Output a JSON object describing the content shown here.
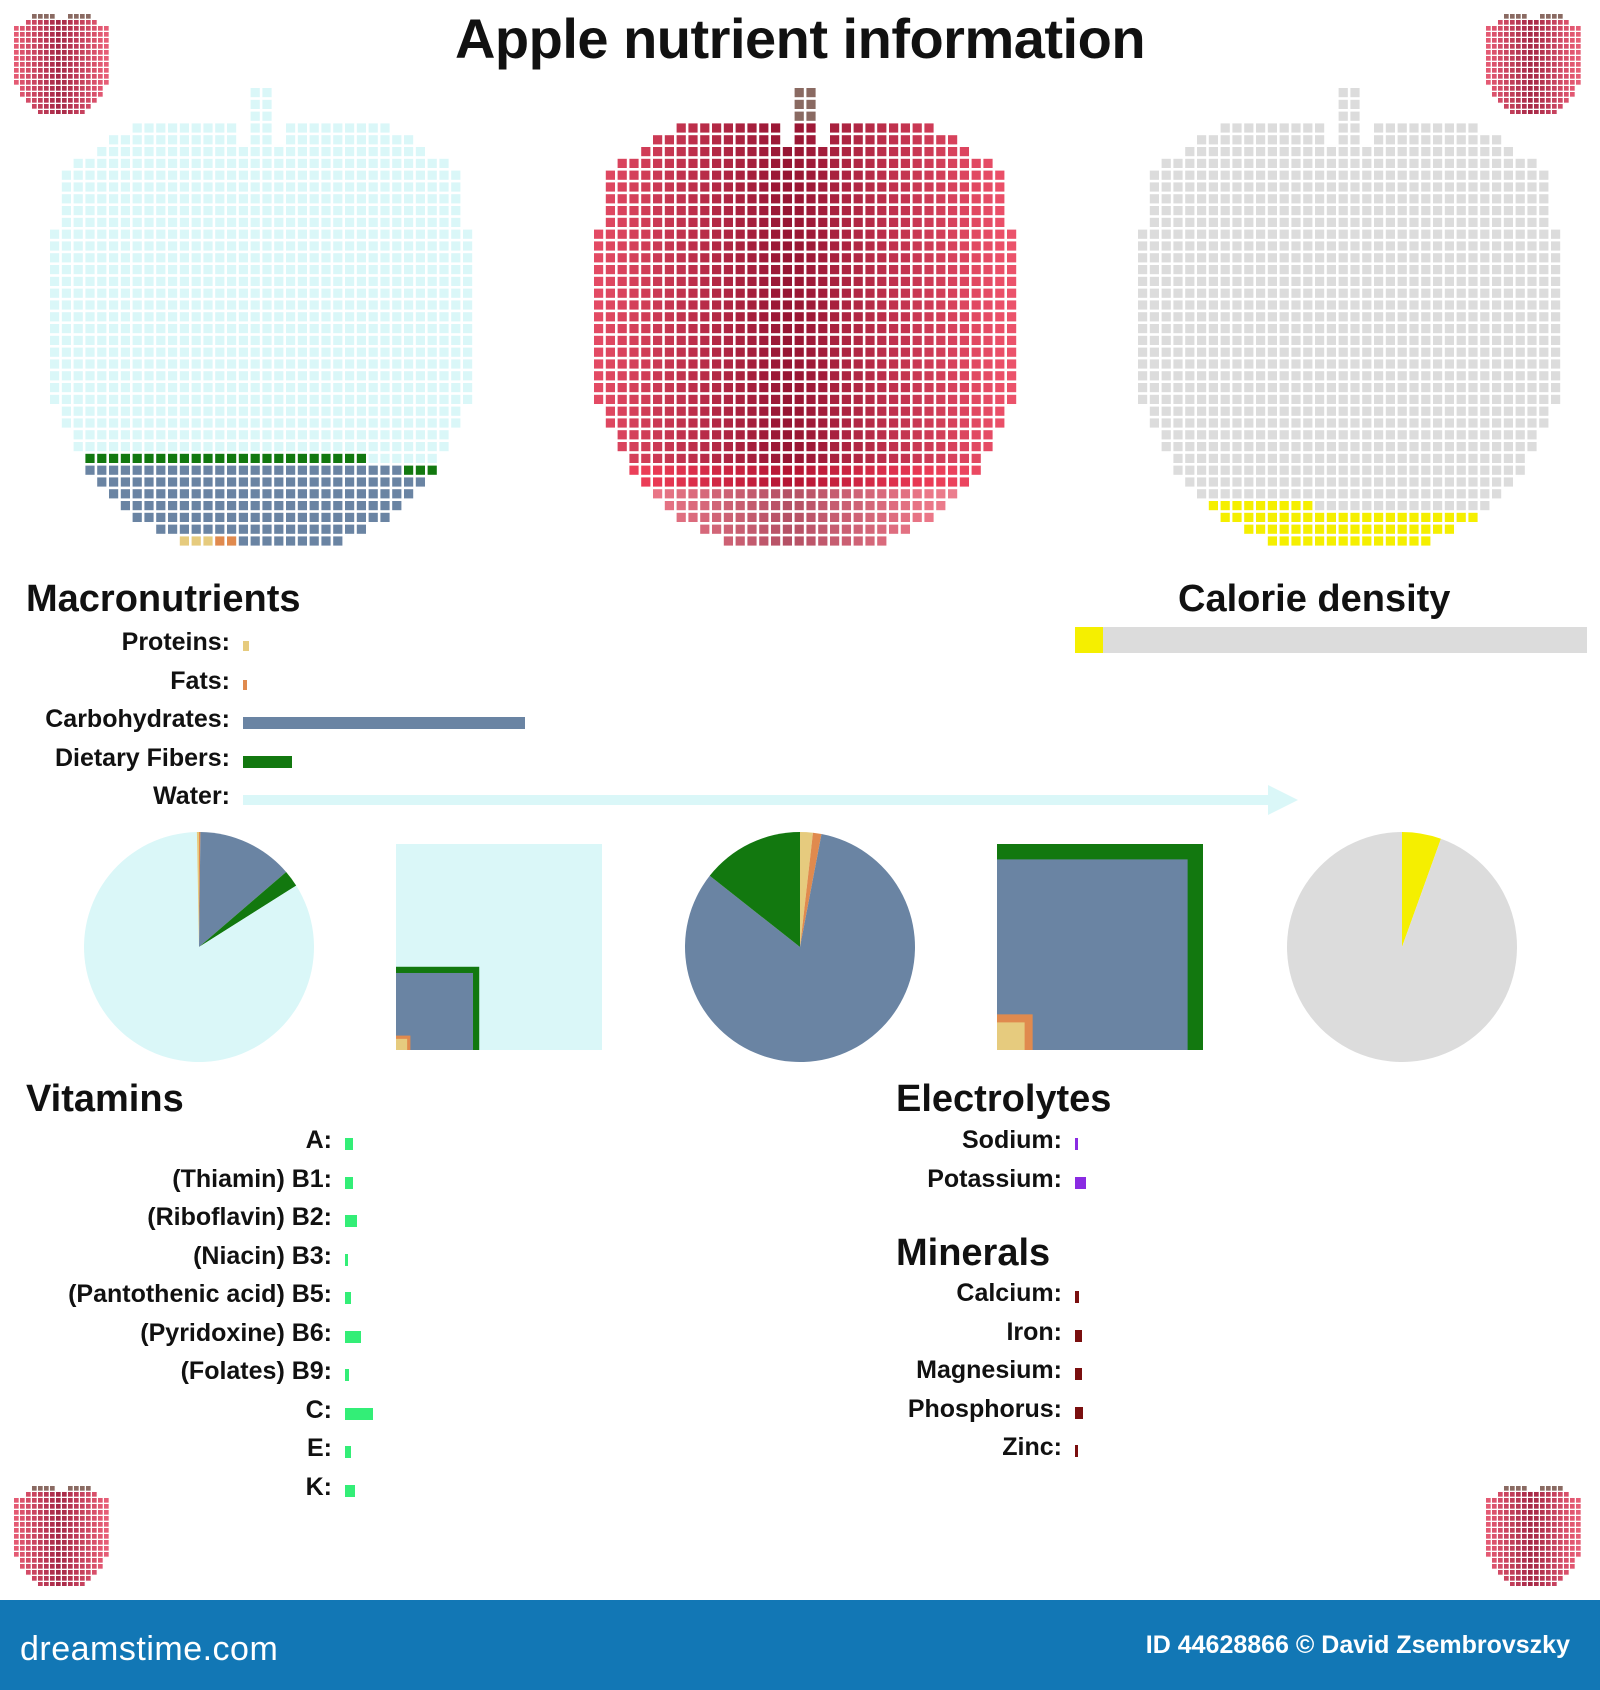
{
  "title": "Apple nutrient information",
  "colors": {
    "water": "#daf7f8",
    "carbohydrates": "#6a84a3",
    "fibers": "#12780f",
    "proteins": "#e6cb7e",
    "fats": "#e08a4e",
    "calorie": "#f5ef00",
    "calorie_bg": "#dcdcdc",
    "apple": "#b01c3c",
    "vitamin": "#33ee77",
    "electrolyte": "#8a2be2",
    "mineral": "#7a0f0f",
    "footer": "#1277b5"
  },
  "macronutrients": {
    "heading": "Macronutrients",
    "items": [
      {
        "label": "Proteins:",
        "key": "proteins",
        "value": 0.3
      },
      {
        "label": "Fats:",
        "key": "fats",
        "value": 0.2
      },
      {
        "label": "Carbohydrates:",
        "key": "carbohydrates",
        "value": 13.8
      },
      {
        "label": "Dietary Fibers:",
        "key": "fibers",
        "value": 2.4
      },
      {
        "label": "Water:",
        "key": "water",
        "value": 85.6
      }
    ]
  },
  "calorie_density": {
    "heading": "Calorie density",
    "fraction": 0.055
  },
  "vitamins": {
    "heading": "Vitamins",
    "items": [
      {
        "label": "A:",
        "value": 1.0
      },
      {
        "label": "(Thiamin) B1:",
        "value": 1.0
      },
      {
        "label": "(Riboflavin) B2:",
        "value": 1.5
      },
      {
        "label": "(Niacin) B3:",
        "value": 0.3
      },
      {
        "label": "(Pantothenic acid) B5:",
        "value": 0.8
      },
      {
        "label": "(Pyridoxine) B6:",
        "value": 2.0
      },
      {
        "label": "(Folates) B9:",
        "value": 0.5
      },
      {
        "label": "C:",
        "value": 3.5
      },
      {
        "label": "E:",
        "value": 0.8
      },
      {
        "label": "K:",
        "value": 1.2
      }
    ]
  },
  "electrolytes": {
    "heading": "Electrolytes",
    "items": [
      {
        "label": "Sodium:",
        "value": 0.3
      },
      {
        "label": "Potassium:",
        "value": 1.4
      }
    ]
  },
  "minerals": {
    "heading": "Minerals",
    "items": [
      {
        "label": "Calcium:",
        "value": 0.5
      },
      {
        "label": "Iron:",
        "value": 0.9
      },
      {
        "label": "Magnesium:",
        "value": 0.9
      },
      {
        "label": "Phosphorus:",
        "value": 1.0
      },
      {
        "label": "Zinc:",
        "value": 0.4
      }
    ]
  },
  "footer": {
    "logo": "dreamstime.com",
    "credit": "ID 44628866 © David Zsembrovszky"
  },
  "chart_data": [
    {
      "type": "bar",
      "title": "Macronutrients",
      "categories": [
        "Proteins",
        "Fats",
        "Carbohydrates",
        "Dietary Fibers",
        "Water"
      ],
      "values": [
        0.3,
        0.2,
        13.8,
        2.4,
        85.6
      ],
      "unit": "g per 100 g"
    },
    {
      "type": "pie",
      "categories": [
        "Water",
        "Carbohydrates",
        "Dietary Fibers",
        "Proteins",
        "Fats"
      ],
      "values": [
        85.6,
        13.8,
        2.4,
        0.3,
        0.2
      ]
    },
    {
      "type": "pie",
      "categories": [
        "Carbohydrates",
        "Dietary Fibers",
        "Proteins",
        "Fats"
      ],
      "values": [
        13.8,
        2.4,
        0.3,
        0.2
      ]
    },
    {
      "type": "pie",
      "title": "Calorie density",
      "categories": [
        "Calories",
        "Rest"
      ],
      "values": [
        5.5,
        94.5
      ]
    },
    {
      "type": "bar",
      "title": "Vitamins",
      "categories": [
        "A",
        "B1",
        "B2",
        "B3",
        "B5",
        "B6",
        "B9",
        "C",
        "E",
        "K"
      ],
      "values": [
        1.0,
        1.0,
        1.5,
        0.3,
        0.8,
        2.0,
        0.5,
        3.5,
        0.8,
        1.2
      ]
    },
    {
      "type": "bar",
      "title": "Electrolytes",
      "categories": [
        "Sodium",
        "Potassium"
      ],
      "values": [
        0.3,
        1.4
      ]
    },
    {
      "type": "bar",
      "title": "Minerals",
      "categories": [
        "Calcium",
        "Iron",
        "Magnesium",
        "Phosphorus",
        "Zinc"
      ],
      "values": [
        0.5,
        0.9,
        0.9,
        1.0,
        0.4
      ]
    }
  ]
}
